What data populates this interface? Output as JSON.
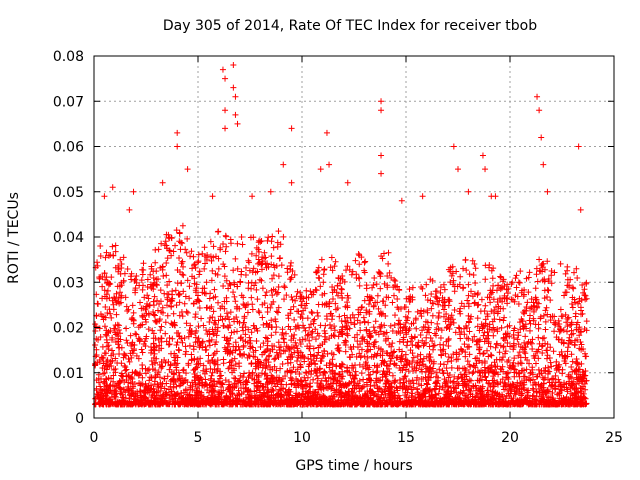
{
  "chart_data": {
    "type": "scatter",
    "title": "Day 305 of 2014, Rate Of TEC Index for receiver tbob",
    "xlabel": "GPS time / hours",
    "ylabel": "ROTI / TECUs",
    "xlim": [
      0,
      25
    ],
    "ylim": [
      0,
      0.08
    ],
    "x_ticks": [
      0,
      5,
      10,
      15,
      20,
      25
    ],
    "x_tick_labels": [
      "0",
      "5",
      "10",
      "15",
      "20",
      "25"
    ],
    "y_ticks": [
      0,
      0.01,
      0.02,
      0.03,
      0.04,
      0.05,
      0.06,
      0.07,
      0.08
    ],
    "y_tick_labels": [
      "0",
      "0.01",
      "0.02",
      "0.03",
      "0.04",
      "0.05",
      "0.06",
      "0.07",
      "0.08"
    ],
    "grid": true,
    "marker": "+",
    "color": "#ff0000",
    "notable_points": [
      {
        "x": 0.3,
        "y": 0.038
      },
      {
        "x": 0.5,
        "y": 0.049
      },
      {
        "x": 0.9,
        "y": 0.051
      },
      {
        "x": 1.7,
        "y": 0.046
      },
      {
        "x": 1.9,
        "y": 0.05
      },
      {
        "x": 3.3,
        "y": 0.052
      },
      {
        "x": 4.0,
        "y": 0.063
      },
      {
        "x": 4.0,
        "y": 0.06
      },
      {
        "x": 4.5,
        "y": 0.055
      },
      {
        "x": 5.7,
        "y": 0.049
      },
      {
        "x": 6.2,
        "y": 0.077
      },
      {
        "x": 6.3,
        "y": 0.075
      },
      {
        "x": 6.3,
        "y": 0.068
      },
      {
        "x": 6.3,
        "y": 0.064
      },
      {
        "x": 6.7,
        "y": 0.078
      },
      {
        "x": 6.7,
        "y": 0.073
      },
      {
        "x": 6.8,
        "y": 0.071
      },
      {
        "x": 6.8,
        "y": 0.067
      },
      {
        "x": 6.9,
        "y": 0.065
      },
      {
        "x": 7.6,
        "y": 0.049
      },
      {
        "x": 8.5,
        "y": 0.05
      },
      {
        "x": 9.1,
        "y": 0.056
      },
      {
        "x": 9.5,
        "y": 0.064
      },
      {
        "x": 9.5,
        "y": 0.052
      },
      {
        "x": 10.9,
        "y": 0.055
      },
      {
        "x": 11.2,
        "y": 0.063
      },
      {
        "x": 11.3,
        "y": 0.056
      },
      {
        "x": 12.2,
        "y": 0.052
      },
      {
        "x": 13.8,
        "y": 0.07
      },
      {
        "x": 13.8,
        "y": 0.068
      },
      {
        "x": 13.8,
        "y": 0.058
      },
      {
        "x": 13.8,
        "y": 0.054
      },
      {
        "x": 14.8,
        "y": 0.048
      },
      {
        "x": 15.8,
        "y": 0.049
      },
      {
        "x": 17.3,
        "y": 0.06
      },
      {
        "x": 17.5,
        "y": 0.055
      },
      {
        "x": 18.0,
        "y": 0.05
      },
      {
        "x": 18.7,
        "y": 0.058
      },
      {
        "x": 18.8,
        "y": 0.055
      },
      {
        "x": 19.1,
        "y": 0.049
      },
      {
        "x": 19.3,
        "y": 0.049
      },
      {
        "x": 21.3,
        "y": 0.071
      },
      {
        "x": 21.4,
        "y": 0.068
      },
      {
        "x": 21.5,
        "y": 0.062
      },
      {
        "x": 21.6,
        "y": 0.056
      },
      {
        "x": 21.8,
        "y": 0.05
      },
      {
        "x": 23.3,
        "y": 0.06
      },
      {
        "x": 23.4,
        "y": 0.046
      },
      {
        "x": 23.4,
        "y": 0.004
      }
    ]
  }
}
